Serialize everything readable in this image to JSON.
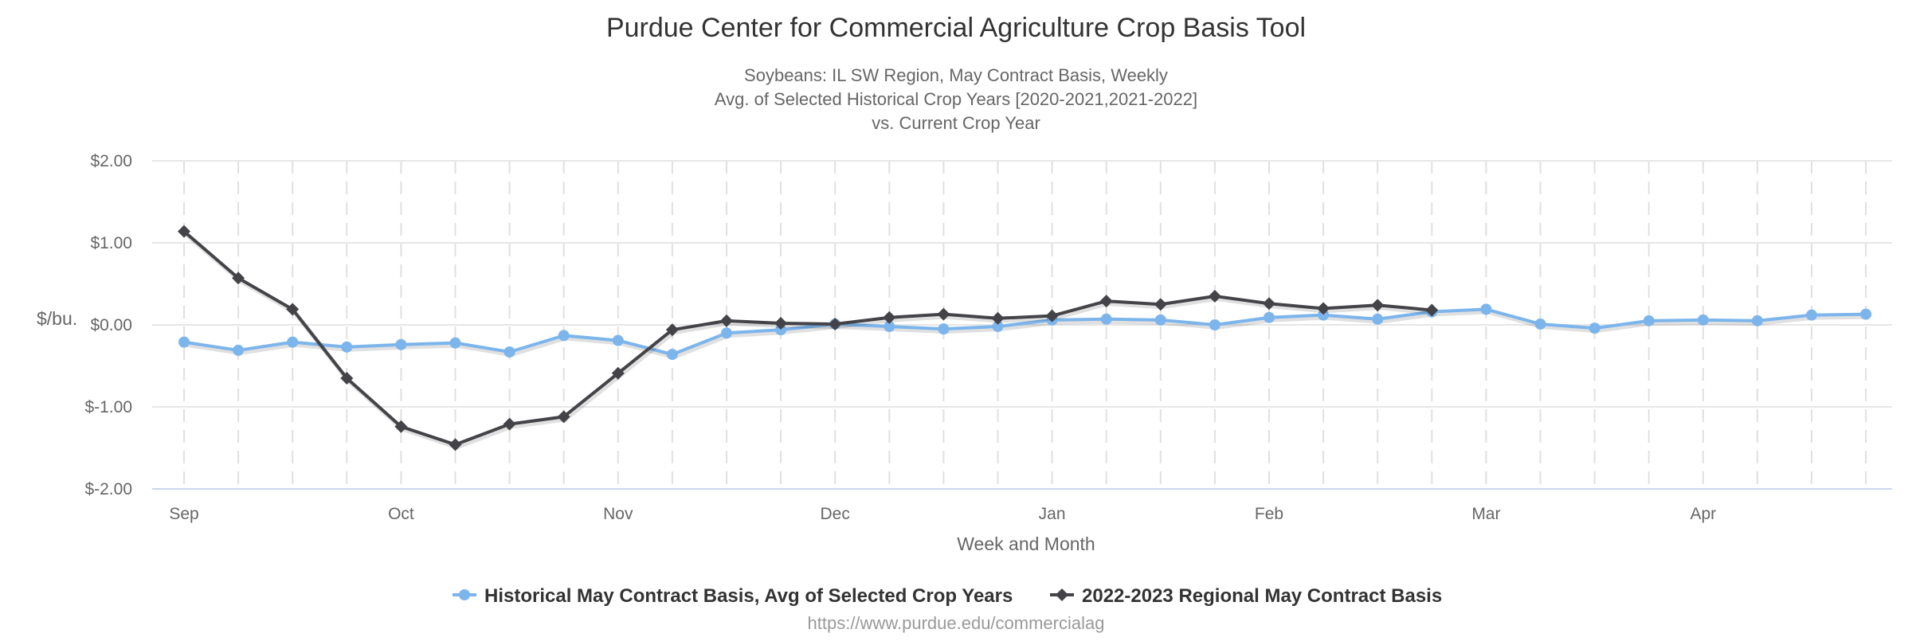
{
  "chart_data": {
    "type": "line",
    "title": "Purdue Center for Commercial Agriculture Crop Basis Tool",
    "subtitle": [
      "Soybeans: IL SW Region, May Contract Basis, Weekly",
      "Avg. of Selected Historical Crop Years [2020-2021,2021-2022]",
      "vs. Current Crop Year"
    ],
    "xlabel": "Week and Month",
    "ylabel": "$/bu.",
    "ylim": [
      -2,
      2
    ],
    "yticks": [
      2,
      1,
      0,
      -1,
      -2
    ],
    "ytick_labels": [
      "$2.00",
      "$1.00",
      "$0.00",
      "$-1.00",
      "$-2.00"
    ],
    "x_month_labels": [
      {
        "week": 0,
        "label": "Sep"
      },
      {
        "week": 4,
        "label": "Oct"
      },
      {
        "week": 8,
        "label": "Nov"
      },
      {
        "week": 12,
        "label": "Dec"
      },
      {
        "week": 16,
        "label": "Jan"
      },
      {
        "week": 20,
        "label": "Feb"
      },
      {
        "week": 24,
        "label": "Mar"
      },
      {
        "week": 28,
        "label": "Apr"
      }
    ],
    "weeks": 32,
    "grid": true,
    "legend_position": "bottom",
    "series": [
      {
        "name": "Historical May Contract Basis, Avg of Selected Crop Years",
        "color": "#7cb5ec",
        "marker": "circle",
        "values": [
          -0.21,
          -0.31,
          -0.21,
          -0.27,
          -0.24,
          -0.22,
          -0.33,
          -0.13,
          -0.19,
          -0.36,
          -0.1,
          -0.06,
          0.01,
          -0.02,
          -0.05,
          -0.02,
          0.06,
          0.07,
          0.06,
          0.0,
          0.09,
          0.12,
          0.07,
          0.16,
          0.19,
          0.01,
          -0.04,
          0.05,
          0.06,
          0.05,
          0.12,
          0.13
        ]
      },
      {
        "name": "2022-2023 Regional May Contract Basis",
        "color": "#434348",
        "marker": "diamond",
        "values": [
          1.14,
          0.57,
          0.19,
          -0.65,
          -1.24,
          -1.46,
          -1.21,
          -1.12,
          -0.59,
          -0.06,
          0.05,
          0.02,
          0.01,
          0.09,
          0.13,
          0.08,
          0.11,
          0.29,
          0.25,
          0.35,
          0.26,
          0.2,
          0.24,
          0.18
        ]
      }
    ],
    "credit": "https://www.purdue.edu/commercialag"
  }
}
